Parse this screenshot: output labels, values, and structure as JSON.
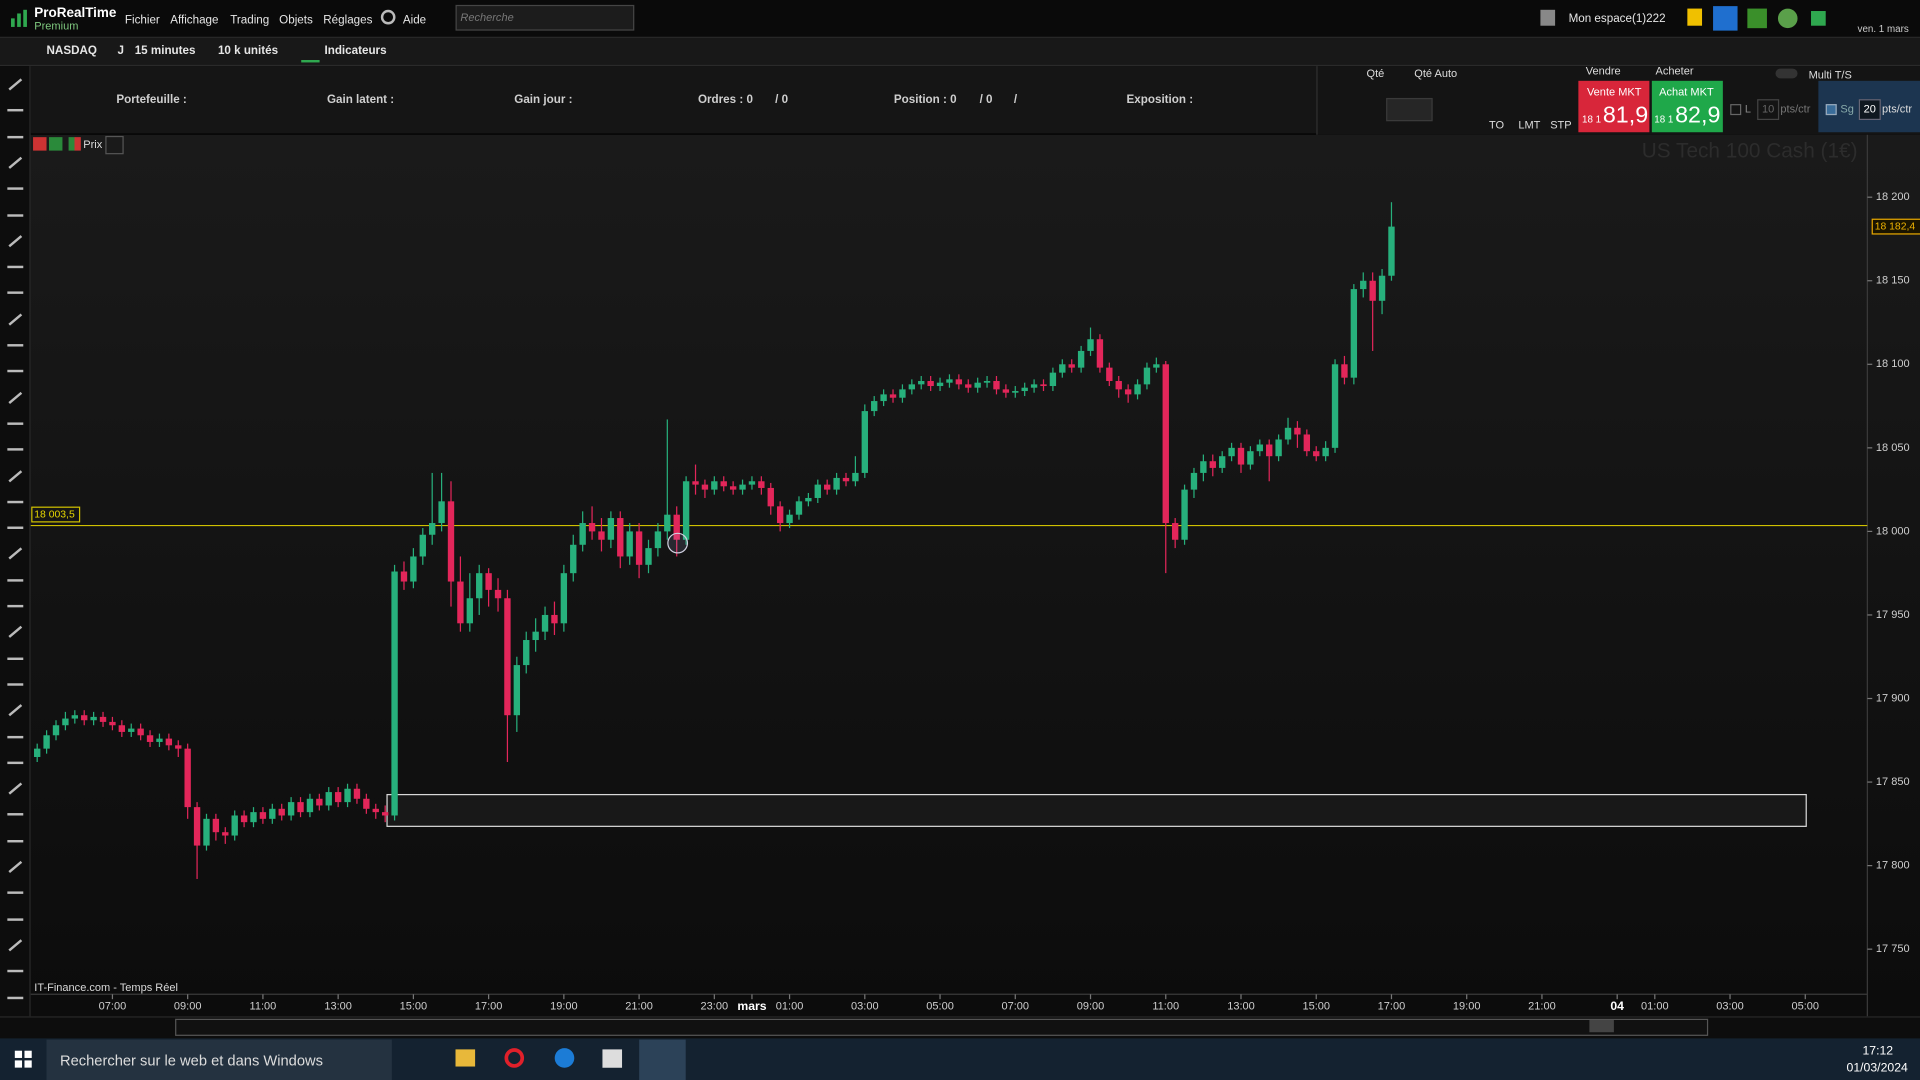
{
  "app": {
    "name": "ProRealTime",
    "edition": "Premium",
    "menu": [
      "Fichier",
      "Affichage",
      "Trading",
      "Objets",
      "Réglages",
      "Aide"
    ],
    "search_placeholder": "Recherche",
    "workspace": "Mon espace(1)222",
    "date": "ven. 1 mars"
  },
  "toolbar": {
    "instrument": "NASDAQ",
    "mode": "J",
    "timeframe": "15 minutes",
    "quantity": "10 k unités",
    "indicators": "Indicateurs"
  },
  "trading_panel": {
    "portfolio": "Portefeuille :",
    "unrealized": "Gain latent :",
    "daily": "Gain jour :",
    "orders": "Ordres : 0",
    "orders_2": "/ 0",
    "position": "Position : 0",
    "position_2": "/ 0",
    "position_3": "/",
    "exposure": "Exposition :"
  },
  "order_panel": {
    "qty": "Qté",
    "qty_auto": "Qté Auto",
    "buttons": [
      "TO",
      "LMT",
      "STP"
    ],
    "sell": "Vendre",
    "buy": "Acheter",
    "sell_mkt": "Vente MKT",
    "sell_prefix": "18 1",
    "sell_price": "81,9",
    "buy_mkt": "Achat MKT",
    "buy_prefix": "18 1",
    "buy_price": "82,9",
    "limit": "L",
    "limit_value": "10",
    "limit_unit": "pts/ctr",
    "stop": "Sg",
    "stop_value": "20",
    "stop_unit": "pts/ctr",
    "multi": "Multi T/S"
  },
  "chart_header": {
    "price_button": "Prix"
  },
  "chart_data": {
    "type": "candlestick",
    "title": "US Tech 100 Cash (1€)",
    "source": "IT-Finance.com - Temps Réel",
    "up_color": "#27b07c",
    "down_color": "#e3265a",
    "x": [
      0,
      1,
      2,
      3,
      4,
      5,
      6,
      7,
      8,
      9,
      10,
      11,
      12,
      13,
      14,
      15,
      16,
      17,
      18,
      19,
      20,
      21,
      22,
      23,
      24,
      25,
      26,
      27,
      28,
      29,
      30,
      31,
      32,
      33,
      34,
      35,
      36,
      37,
      38,
      39,
      40,
      41,
      42,
      43,
      44,
      45,
      46,
      47,
      48,
      49,
      50,
      51,
      52,
      53,
      54,
      55,
      56,
      57,
      58,
      59,
      60,
      61,
      62,
      63,
      64,
      65,
      66,
      67,
      68,
      69,
      70,
      71,
      72,
      73,
      74,
      75,
      76,
      77,
      78,
      79,
      80,
      81,
      82,
      83,
      84,
      85,
      86,
      87,
      88,
      89,
      90,
      91,
      92,
      93,
      94,
      95,
      96,
      97,
      98,
      99,
      100,
      101,
      102,
      103,
      104,
      105,
      106,
      107,
      108,
      109,
      110,
      111,
      112,
      113,
      114,
      115,
      116,
      117,
      118,
      119,
      120,
      121,
      122,
      123,
      124,
      125,
      126,
      127,
      128,
      129,
      130,
      131,
      132,
      133,
      134,
      135,
      136,
      137,
      138,
      139,
      140,
      141,
      142,
      143,
      144
    ],
    "open": [
      17865,
      17870,
      17878,
      17884,
      17888,
      17890,
      17887,
      17889,
      17886,
      17884,
      17880,
      17882,
      17878,
      17874,
      17876,
      17872,
      17870,
      17835,
      17812,
      17828,
      17820,
      17818,
      17830,
      17826,
      17832,
      17828,
      17834,
      17830,
      17838,
      17832,
      17840,
      17836,
      17844,
      17838,
      17846,
      17840,
      17834,
      17832,
      17830,
      17976,
      17970,
      17985,
      17998,
      18005,
      18018,
      17970,
      17945,
      17960,
      17975,
      17965,
      17960,
      17890,
      17920,
      17935,
      17940,
      17950,
      17945,
      17975,
      17992,
      18005,
      18000,
      17995,
      18008,
      17985,
      18000,
      17980,
      17990,
      18000,
      18010,
      17995,
      18030,
      18028,
      18025,
      18030,
      18027,
      18025,
      18028,
      18030,
      18026,
      18015,
      18005,
      18010,
      18018,
      18020,
      18028,
      18025,
      18032,
      18030,
      18035,
      18072,
      18078,
      18082,
      18080,
      18085,
      18088,
      18090,
      18087,
      18089,
      18091,
      18088,
      18086,
      18089,
      18090,
      18085,
      18083,
      18084,
      18086,
      18088,
      18087,
      18095,
      18100,
      18098,
      18108,
      18115,
      18098,
      18090,
      18085,
      18082,
      18088,
      18098,
      18100,
      18005,
      17995,
      18025,
      18035,
      18042,
      18038,
      18045,
      18050,
      18040,
      18048,
      18052,
      18045,
      18055,
      18062,
      18058,
      18048,
      18045,
      18050,
      18100,
      18092,
      18145,
      18150,
      18138,
      18153
    ],
    "high": [
      17873,
      17881,
      17887,
      17892,
      17893,
      17893,
      17892,
      17892,
      17889,
      17887,
      17885,
      17885,
      17881,
      17879,
      17879,
      17875,
      17873,
      17838,
      17831,
      17831,
      17823,
      17833,
      17833,
      17835,
      17835,
      17837,
      17837,
      17841,
      17841,
      17843,
      17843,
      17847,
      17847,
      17849,
      17849,
      17843,
      17837,
      17836,
      17980,
      17982,
      17990,
      18002,
      18035,
      18035,
      18030,
      17985,
      17975,
      17980,
      17978,
      17972,
      17965,
      17925,
      17940,
      17948,
      17955,
      17958,
      17980,
      17998,
      18012,
      18015,
      18008,
      18012,
      18012,
      18005,
      18005,
      17995,
      18005,
      18067,
      18015,
      18033,
      18040,
      18031,
      18033,
      18033,
      18030,
      18031,
      18033,
      18033,
      18029,
      18018,
      18013,
      18021,
      18023,
      18031,
      18031,
      18035,
      18035,
      18045,
      18076,
      18081,
      18085,
      18085,
      18088,
      18091,
      18093,
      18093,
      18092,
      18094,
      18094,
      18091,
      18092,
      18093,
      18093,
      18088,
      18087,
      18089,
      18091,
      18091,
      18098,
      18103,
      18103,
      18111,
      18122,
      18118,
      18101,
      18093,
      18088,
      18091,
      18101,
      18104,
      18102,
      18008,
      18028,
      18038,
      18046,
      18046,
      18048,
      18053,
      18053,
      18051,
      18055,
      18055,
      18058,
      18068,
      18066,
      18061,
      18051,
      18054,
      18103,
      18105,
      18148,
      18155,
      18155,
      18157,
      18197
    ],
    "low": [
      17862,
      17867,
      17875,
      17881,
      17885,
      17884,
      17884,
      17883,
      17881,
      17877,
      17877,
      17875,
      17871,
      17871,
      17869,
      17865,
      17828,
      17792,
      17809,
      17815,
      17813,
      17815,
      17823,
      17823,
      17825,
      17825,
      17827,
      17827,
      17829,
      17829,
      17833,
      17833,
      17835,
      17835,
      17837,
      17831,
      17828,
      17826,
      17827,
      17965,
      17966,
      17980,
      17992,
      18000,
      17955,
      17940,
      17940,
      17950,
      17955,
      17952,
      17862,
      17880,
      17915,
      17928,
      17935,
      17938,
      17940,
      17970,
      17988,
      17995,
      17988,
      17990,
      17978,
      17980,
      17972,
      17975,
      17985,
      17995,
      17985,
      17992,
      18022,
      18020,
      18022,
      18024,
      18022,
      18022,
      18025,
      18022,
      18010,
      18000,
      18002,
      18007,
      18015,
      18017,
      18022,
      18022,
      18027,
      18027,
      18032,
      18069,
      18075,
      18077,
      18077,
      18082,
      18085,
      18084,
      18084,
      18086,
      18085,
      18083,
      18083,
      18086,
      18082,
      18080,
      18080,
      18081,
      18083,
      18084,
      18084,
      18092,
      18095,
      18095,
      18105,
      18095,
      18087,
      18080,
      18077,
      18079,
      18085,
      18095,
      17975,
      17990,
      17992,
      18020,
      18030,
      18033,
      18035,
      18042,
      18035,
      18037,
      18045,
      18030,
      18042,
      18052,
      18050,
      18045,
      18042,
      18042,
      18047,
      18088,
      18088,
      18140,
      18108,
      18130,
      18150
    ],
    "close": [
      17870,
      17878,
      17884,
      17888,
      17890,
      17887,
      17889,
      17886,
      17884,
      17880,
      17882,
      17878,
      17874,
      17876,
      17872,
      17870,
      17835,
      17812,
      17828,
      17820,
      17818,
      17830,
      17826,
      17832,
      17828,
      17834,
      17830,
      17838,
      17832,
      17840,
      17836,
      17844,
      17838,
      17846,
      17840,
      17834,
      17832,
      17830,
      17976,
      17970,
      17985,
      17998,
      18005,
      18018,
      17970,
      17945,
      17960,
      17975,
      17965,
      17960,
      17890,
      17920,
      17935,
      17940,
      17950,
      17945,
      17975,
      17992,
      18005,
      18000,
      17995,
      18008,
      17985,
      18000,
      17980,
      17990,
      18000,
      18010,
      17995,
      18030,
      18028,
      18025,
      18030,
      18027,
      18025,
      18028,
      18030,
      18026,
      18015,
      18005,
      18010,
      18018,
      18020,
      18028,
      18025,
      18032,
      18030,
      18035,
      18072,
      18078,
      18082,
      18080,
      18085,
      18088,
      18090,
      18087,
      18089,
      18091,
      18088,
      18086,
      18089,
      18090,
      18085,
      18083,
      18084,
      18086,
      18088,
      18087,
      18095,
      18100,
      18098,
      18108,
      18115,
      18098,
      18090,
      18085,
      18082,
      18088,
      18098,
      18100,
      18005,
      17995,
      18025,
      18035,
      18042,
      18038,
      18045,
      18050,
      18040,
      18048,
      18052,
      18045,
      18055,
      18062,
      18058,
      18048,
      18045,
      18050,
      18100,
      18092,
      18145,
      18150,
      18138,
      18153,
      18182.4
    ],
    "xlim": [
      -0.7,
      194.6
    ],
    "xticks": [
      {
        "value": 8,
        "label": "07:00"
      },
      {
        "value": 16,
        "label": "09:00"
      },
      {
        "value": 24,
        "label": "11:00"
      },
      {
        "value": 32,
        "label": "13:00"
      },
      {
        "value": 40,
        "label": "15:00"
      },
      {
        "value": 48,
        "label": "17:00"
      },
      {
        "value": 56,
        "label": "19:00"
      },
      {
        "value": 64,
        "label": "21:00"
      },
      {
        "value": 72,
        "label": "23:00"
      },
      {
        "value": 76,
        "label": "mars"
      },
      {
        "value": 80,
        "label": "01:00"
      },
      {
        "value": 88,
        "label": "03:00"
      },
      {
        "value": 96,
        "label": "05:00"
      },
      {
        "value": 104,
        "label": "07:00"
      },
      {
        "value": 112,
        "label": "09:00"
      },
      {
        "value": 120,
        "label": "11:00"
      },
      {
        "value": 128,
        "label": "13:00"
      },
      {
        "value": 136,
        "label": "15:00"
      },
      {
        "value": 144,
        "label": "17:00"
      },
      {
        "value": 152,
        "label": "19:00"
      },
      {
        "value": 160,
        "label": "21:00"
      },
      {
        "value": 168,
        "label": "04"
      },
      {
        "value": 172,
        "label": "01:00"
      },
      {
        "value": 180,
        "label": "03:00"
      },
      {
        "value": 188,
        "label": "05:00"
      }
    ],
    "ylim": [
      17723,
      18237.4
    ],
    "yticks": [
      {
        "value": 17750,
        "label": "17 750"
      },
      {
        "value": 17800,
        "label": "17 800"
      },
      {
        "value": 17850,
        "label": "17 850"
      },
      {
        "value": 17900,
        "label": "17 900"
      },
      {
        "value": 17950,
        "label": "17 950"
      },
      {
        "value": 18000,
        "label": "18 000"
      },
      {
        "value": 18050,
        "label": "18 050"
      },
      {
        "value": 18100,
        "label": "18 100"
      },
      {
        "value": 18150,
        "label": "18 150"
      },
      {
        "value": 18200,
        "label": "18 200"
      }
    ],
    "level": {
      "value": 18003.5,
      "label": "18 003,5"
    },
    "last": {
      "value": 18182.4,
      "label": "18 182,4"
    },
    "zone": {
      "x0": 37.2,
      "x1": 188.1,
      "y0": 17823.5,
      "y1": 17842.5
    },
    "marker": {
      "x": 68.1,
      "y": 17993
    }
  },
  "taskbar": {
    "search": "Rechercher sur le web et dans Windows",
    "time": "17:12",
    "date": "01/03/2024"
  }
}
